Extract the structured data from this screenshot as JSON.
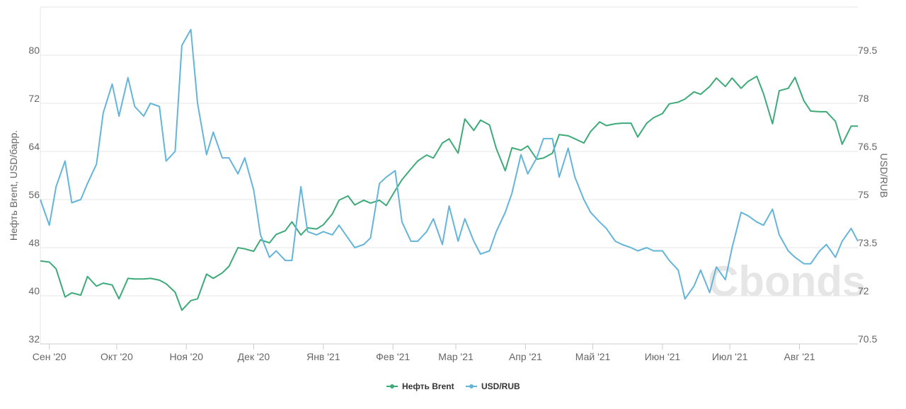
{
  "chart_data": {
    "type": "line",
    "title": "",
    "watermark": "Cbonds",
    "grid": true,
    "legend_position": "bottom-center",
    "x_labels": [
      "Сен '20",
      "Окт '20",
      "Ноя '20",
      "Дек '20",
      "Янв '21",
      "Фев '21",
      "Мар '21",
      "Апр '21",
      "Май '21",
      "Июн '21",
      "Июл '21",
      "Авг '21"
    ],
    "x_range": [
      "2020-08-28",
      "2021-08-27"
    ],
    "left_axis": {
      "label": "Нефть Brent, USD/барр.",
      "ylim": [
        32,
        88
      ],
      "ticks": [
        "32",
        "40",
        "48",
        "56",
        "64",
        "72",
        "80"
      ]
    },
    "right_axis": {
      "label": "USD/RUB",
      "ylim": [
        70.5,
        81
      ],
      "ticks": [
        "70.5",
        "72",
        "73.5",
        "75",
        "76.5",
        "78",
        "79.5"
      ]
    },
    "series": [
      {
        "name": "Нефть Brent",
        "axis": "left",
        "color": "#3daa78",
        "points": [
          [
            "2020-08-28",
            45.8
          ],
          [
            "2020-09-01",
            45.6
          ],
          [
            "2020-09-04",
            44.5
          ],
          [
            "2020-09-08",
            39.8
          ],
          [
            "2020-09-11",
            40.5
          ],
          [
            "2020-09-15",
            40.1
          ],
          [
            "2020-09-18",
            43.2
          ],
          [
            "2020-09-22",
            41.6
          ],
          [
            "2020-09-25",
            42.1
          ],
          [
            "2020-09-29",
            41.8
          ],
          [
            "2020-10-02",
            39.5
          ],
          [
            "2020-10-06",
            42.9
          ],
          [
            "2020-10-09",
            42.8
          ],
          [
            "2020-10-13",
            42.8
          ],
          [
            "2020-10-16",
            42.9
          ],
          [
            "2020-10-20",
            42.6
          ],
          [
            "2020-10-23",
            42.0
          ],
          [
            "2020-10-27",
            40.6
          ],
          [
            "2020-10-30",
            37.6
          ],
          [
            "2020-11-03",
            39.2
          ],
          [
            "2020-11-06",
            39.5
          ],
          [
            "2020-11-10",
            43.6
          ],
          [
            "2020-11-13",
            42.9
          ],
          [
            "2020-11-17",
            43.8
          ],
          [
            "2020-11-20",
            44.9
          ],
          [
            "2020-11-24",
            48.0
          ],
          [
            "2020-11-27",
            47.8
          ],
          [
            "2020-12-01",
            47.4
          ],
          [
            "2020-12-04",
            49.3
          ],
          [
            "2020-12-08",
            48.8
          ],
          [
            "2020-12-11",
            50.2
          ],
          [
            "2020-12-15",
            50.8
          ],
          [
            "2020-12-18",
            52.3
          ],
          [
            "2020-12-22",
            50.1
          ],
          [
            "2020-12-25",
            51.3
          ],
          [
            "2020-12-29",
            51.1
          ],
          [
            "2021-01-01",
            51.8
          ],
          [
            "2021-01-05",
            53.6
          ],
          [
            "2021-01-08",
            55.9
          ],
          [
            "2021-01-12",
            56.6
          ],
          [
            "2021-01-15",
            55.1
          ],
          [
            "2021-01-19",
            55.9
          ],
          [
            "2021-01-22",
            55.4
          ],
          [
            "2021-01-26",
            55.9
          ],
          [
            "2021-01-29",
            55.0
          ],
          [
            "2021-02-02",
            57.5
          ],
          [
            "2021-02-05",
            59.3
          ],
          [
            "2021-02-09",
            61.1
          ],
          [
            "2021-02-12",
            62.4
          ],
          [
            "2021-02-16",
            63.4
          ],
          [
            "2021-02-19",
            62.9
          ],
          [
            "2021-02-23",
            65.4
          ],
          [
            "2021-02-26",
            66.1
          ],
          [
            "2021-03-02",
            63.7
          ],
          [
            "2021-03-05",
            69.4
          ],
          [
            "2021-03-09",
            67.5
          ],
          [
            "2021-03-12",
            69.2
          ],
          [
            "2021-03-16",
            68.4
          ],
          [
            "2021-03-19",
            64.5
          ],
          [
            "2021-03-23",
            60.8
          ],
          [
            "2021-03-26",
            64.6
          ],
          [
            "2021-03-30",
            64.2
          ],
          [
            "2021-04-02",
            64.9
          ],
          [
            "2021-04-06",
            62.7
          ],
          [
            "2021-04-09",
            62.9
          ],
          [
            "2021-04-13",
            63.7
          ],
          [
            "2021-04-16",
            66.8
          ],
          [
            "2021-04-20",
            66.6
          ],
          [
            "2021-04-23",
            66.1
          ],
          [
            "2021-04-27",
            65.4
          ],
          [
            "2021-04-30",
            67.3
          ],
          [
            "2021-05-04",
            68.9
          ],
          [
            "2021-05-07",
            68.3
          ],
          [
            "2021-05-11",
            68.6
          ],
          [
            "2021-05-14",
            68.7
          ],
          [
            "2021-05-18",
            68.7
          ],
          [
            "2021-05-21",
            66.4
          ],
          [
            "2021-05-25",
            68.7
          ],
          [
            "2021-05-28",
            69.6
          ],
          [
            "2021-06-01",
            70.3
          ],
          [
            "2021-06-04",
            71.9
          ],
          [
            "2021-06-08",
            72.2
          ],
          [
            "2021-06-11",
            72.7
          ],
          [
            "2021-06-15",
            73.9
          ],
          [
            "2021-06-18",
            73.5
          ],
          [
            "2021-06-22",
            74.8
          ],
          [
            "2021-06-25",
            76.2
          ],
          [
            "2021-06-29",
            74.8
          ],
          [
            "2021-07-02",
            76.2
          ],
          [
            "2021-07-06",
            74.5
          ],
          [
            "2021-07-09",
            75.6
          ],
          [
            "2021-07-13",
            76.5
          ],
          [
            "2021-07-16",
            73.6
          ],
          [
            "2021-07-20",
            68.6
          ],
          [
            "2021-07-23",
            74.1
          ],
          [
            "2021-07-27",
            74.5
          ],
          [
            "2021-07-30",
            76.3
          ],
          [
            "2021-08-03",
            72.4
          ],
          [
            "2021-08-06",
            70.7
          ],
          [
            "2021-08-10",
            70.6
          ],
          [
            "2021-08-13",
            70.6
          ],
          [
            "2021-08-17",
            69.0
          ],
          [
            "2021-08-20",
            65.2
          ],
          [
            "2021-08-24",
            68.2
          ],
          [
            "2021-08-27",
            68.2
          ]
        ]
      },
      {
        "name": "USD/RUB",
        "axis": "right",
        "color": "#64b5d9",
        "points": [
          [
            "2020-08-28",
            75.0
          ],
          [
            "2020-09-01",
            74.2
          ],
          [
            "2020-09-04",
            75.4
          ],
          [
            "2020-09-08",
            76.2
          ],
          [
            "2020-09-11",
            74.9
          ],
          [
            "2020-09-15",
            75.0
          ],
          [
            "2020-09-18",
            75.5
          ],
          [
            "2020-09-22",
            76.1
          ],
          [
            "2020-09-25",
            77.7
          ],
          [
            "2020-09-29",
            78.6
          ],
          [
            "2020-10-02",
            77.6
          ],
          [
            "2020-10-06",
            78.8
          ],
          [
            "2020-10-09",
            77.9
          ],
          [
            "2020-10-13",
            77.6
          ],
          [
            "2020-10-16",
            78.0
          ],
          [
            "2020-10-20",
            77.9
          ],
          [
            "2020-10-23",
            76.2
          ],
          [
            "2020-10-27",
            76.5
          ],
          [
            "2020-10-30",
            79.8
          ],
          [
            "2020-11-03",
            80.3
          ],
          [
            "2020-11-06",
            78.0
          ],
          [
            "2020-11-10",
            76.4
          ],
          [
            "2020-11-13",
            77.1
          ],
          [
            "2020-11-17",
            76.3
          ],
          [
            "2020-11-20",
            76.3
          ],
          [
            "2020-11-24",
            75.8
          ],
          [
            "2020-11-27",
            76.3
          ],
          [
            "2020-12-01",
            75.3
          ],
          [
            "2020-12-04",
            73.9
          ],
          [
            "2020-12-08",
            73.2
          ],
          [
            "2020-12-11",
            73.4
          ],
          [
            "2020-12-15",
            73.1
          ],
          [
            "2020-12-18",
            73.1
          ],
          [
            "2020-12-22",
            75.4
          ],
          [
            "2020-12-25",
            74.0
          ],
          [
            "2020-12-29",
            73.9
          ],
          [
            "2021-01-01",
            74.0
          ],
          [
            "2021-01-05",
            73.9
          ],
          [
            "2021-01-08",
            74.2
          ],
          [
            "2021-01-12",
            73.8
          ],
          [
            "2021-01-15",
            73.5
          ],
          [
            "2021-01-19",
            73.6
          ],
          [
            "2021-01-22",
            73.8
          ],
          [
            "2021-01-26",
            75.5
          ],
          [
            "2021-01-29",
            75.7
          ],
          [
            "2021-02-02",
            75.9
          ],
          [
            "2021-02-05",
            74.3
          ],
          [
            "2021-02-09",
            73.7
          ],
          [
            "2021-02-12",
            73.7
          ],
          [
            "2021-02-16",
            74.0
          ],
          [
            "2021-02-19",
            74.4
          ],
          [
            "2021-02-23",
            73.6
          ],
          [
            "2021-02-26",
            74.8
          ],
          [
            "2021-03-02",
            73.7
          ],
          [
            "2021-03-05",
            74.4
          ],
          [
            "2021-03-09",
            73.7
          ],
          [
            "2021-03-12",
            73.3
          ],
          [
            "2021-03-16",
            73.4
          ],
          [
            "2021-03-19",
            74.0
          ],
          [
            "2021-03-23",
            74.6
          ],
          [
            "2021-03-26",
            75.2
          ],
          [
            "2021-03-30",
            76.4
          ],
          [
            "2021-04-02",
            75.8
          ],
          [
            "2021-04-06",
            76.3
          ],
          [
            "2021-04-09",
            76.9
          ],
          [
            "2021-04-13",
            76.9
          ],
          [
            "2021-04-16",
            75.7
          ],
          [
            "2021-04-20",
            76.6
          ],
          [
            "2021-04-23",
            75.7
          ],
          [
            "2021-04-27",
            75.0
          ],
          [
            "2021-04-30",
            74.6
          ],
          [
            "2021-05-04",
            74.3
          ],
          [
            "2021-05-07",
            74.1
          ],
          [
            "2021-05-11",
            73.7
          ],
          [
            "2021-05-14",
            73.6
          ],
          [
            "2021-05-18",
            73.5
          ],
          [
            "2021-05-21",
            73.4
          ],
          [
            "2021-05-25",
            73.5
          ],
          [
            "2021-05-28",
            73.4
          ],
          [
            "2021-06-01",
            73.4
          ],
          [
            "2021-06-04",
            73.1
          ],
          [
            "2021-06-08",
            72.8
          ],
          [
            "2021-06-11",
            71.9
          ],
          [
            "2021-06-15",
            72.3
          ],
          [
            "2021-06-18",
            72.8
          ],
          [
            "2021-06-22",
            72.1
          ],
          [
            "2021-06-25",
            72.9
          ],
          [
            "2021-06-29",
            72.5
          ],
          [
            "2021-07-02",
            73.5
          ],
          [
            "2021-07-06",
            74.6
          ],
          [
            "2021-07-09",
            74.5
          ],
          [
            "2021-07-13",
            74.3
          ],
          [
            "2021-07-16",
            74.2
          ],
          [
            "2021-07-20",
            74.7
          ],
          [
            "2021-07-23",
            73.9
          ],
          [
            "2021-07-27",
            73.4
          ],
          [
            "2021-07-30",
            73.2
          ],
          [
            "2021-08-03",
            73.0
          ],
          [
            "2021-08-06",
            73.0
          ],
          [
            "2021-08-10",
            73.4
          ],
          [
            "2021-08-13",
            73.6
          ],
          [
            "2021-08-17",
            73.2
          ],
          [
            "2021-08-20",
            73.7
          ],
          [
            "2021-08-24",
            74.1
          ],
          [
            "2021-08-27",
            73.7
          ]
        ]
      }
    ]
  }
}
